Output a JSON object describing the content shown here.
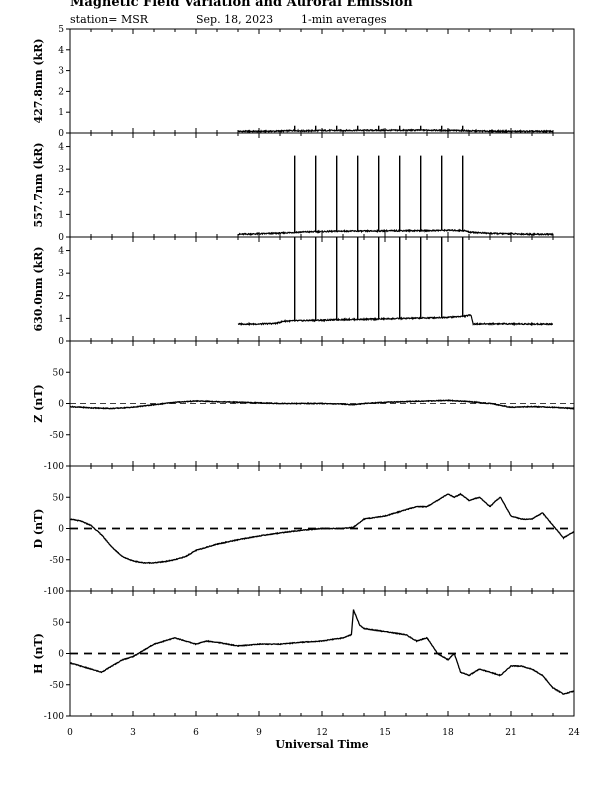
{
  "header": {
    "title": "Magnetic Field Variation and Auroral Emission",
    "station": "station= MSR",
    "date": "Sep. 18, 2023",
    "averaging": "1-min averages"
  },
  "chart_data": [
    {
      "type": "line",
      "panel": "427.8nm",
      "ylabel": "427.8nm (kR)",
      "ylim": [
        0,
        5
      ],
      "yticks": [
        0,
        1,
        2,
        3,
        4,
        5
      ],
      "xlim": [
        0,
        24
      ],
      "grid": false,
      "series": [
        {
          "x": [
            8.0,
            9,
            10,
            10.7,
            11,
            12,
            13,
            14,
            15,
            16,
            17,
            18,
            18.8,
            19,
            20,
            21,
            22,
            23.0
          ],
          "values": [
            0.08,
            0.08,
            0.09,
            0.12,
            0.1,
            0.12,
            0.12,
            0.13,
            0.13,
            0.13,
            0.14,
            0.12,
            0.12,
            0.1,
            0.09,
            0.08,
            0.08,
            0.08
          ]
        }
      ],
      "spikes": {
        "x": [
          10.7,
          11.7,
          12.7,
          13.7,
          14.7,
          15.7,
          16.7,
          17.7,
          18.7
        ],
        "value": 0.35
      }
    },
    {
      "type": "line",
      "panel": "557.7nm",
      "ylabel": "557.7nm (kR)",
      "ylim": [
        0,
        4.6
      ],
      "yticks": [
        0,
        1,
        2,
        3,
        4
      ],
      "xlim": [
        0,
        24
      ],
      "grid": false,
      "series": [
        {
          "x": [
            8.0,
            9,
            10,
            11,
            12,
            13,
            14,
            15,
            16,
            17,
            18,
            18.8,
            19,
            20,
            21,
            22,
            23.0
          ],
          "values": [
            0.12,
            0.14,
            0.17,
            0.22,
            0.24,
            0.26,
            0.26,
            0.27,
            0.28,
            0.28,
            0.3,
            0.28,
            0.22,
            0.16,
            0.14,
            0.12,
            0.12
          ]
        }
      ],
      "spikes": {
        "x": [
          10.7,
          11.7,
          12.7,
          13.7,
          14.7,
          15.7,
          16.7,
          17.7,
          18.7
        ],
        "value": 3.6
      }
    },
    {
      "type": "line",
      "panel": "630.0nm",
      "ylabel": "630.0nm (kR)",
      "ylim": [
        0,
        4.6
      ],
      "yticks": [
        0,
        1,
        2,
        3,
        4
      ],
      "xlim": [
        0,
        24
      ],
      "grid": false,
      "series": [
        {
          "x": [
            8.0,
            9,
            9.8,
            10.2,
            11,
            12,
            13,
            14,
            15,
            16,
            17,
            18,
            18.8,
            19.1,
            19.2,
            20,
            21,
            22,
            23.0
          ],
          "values": [
            0.75,
            0.75,
            0.78,
            0.88,
            0.9,
            0.92,
            0.95,
            0.96,
            0.98,
            1.0,
            1.02,
            1.05,
            1.1,
            1.15,
            0.75,
            0.76,
            0.76,
            0.75,
            0.75
          ]
        }
      ],
      "spikes": {
        "x": [
          10.7,
          11.7,
          12.7,
          13.7,
          14.7,
          15.7,
          16.7,
          17.7,
          18.7
        ],
        "value": 4.6
      }
    },
    {
      "type": "line",
      "panel": "Z",
      "ylabel": "Z (nT)",
      "ylim": [
        -100,
        100
      ],
      "yticks": [
        -100,
        -50,
        0,
        50
      ],
      "xlim": [
        0,
        24
      ],
      "grid": false,
      "zero_line": true,
      "series": [
        {
          "x": [
            0,
            1,
            2,
            3,
            4,
            5,
            6,
            7,
            8,
            9,
            10,
            11,
            12,
            13,
            13.5,
            14,
            15,
            16,
            17,
            18,
            19,
            20,
            21,
            22,
            23,
            24
          ],
          "values": [
            -5,
            -7,
            -8,
            -6,
            -2,
            2,
            4,
            3,
            2,
            1,
            0,
            0,
            0,
            -1,
            -2,
            0,
            2,
            3,
            4,
            5,
            3,
            0,
            -6,
            -5,
            -6,
            -8
          ]
        }
      ]
    },
    {
      "type": "line",
      "panel": "D",
      "ylabel": "D (nT)",
      "ylim": [
        -100,
        100
      ],
      "yticks": [
        -100,
        -50,
        0,
        50
      ],
      "xlim": [
        0,
        24
      ],
      "grid": false,
      "zero_line": true,
      "series": [
        {
          "x": [
            0,
            0.5,
            1,
            1.5,
            2,
            2.5,
            3,
            3.5,
            4,
            4.5,
            5,
            5.5,
            6,
            6.5,
            7,
            8,
            9,
            10,
            11,
            12,
            13,
            13.5,
            14,
            15,
            16,
            16.5,
            17,
            17.5,
            18,
            18.3,
            18.6,
            19,
            19.5,
            20,
            20.3,
            20.5,
            21,
            21.5,
            22,
            22.5,
            23,
            23.5,
            24
          ],
          "values": [
            15,
            12,
            5,
            -10,
            -30,
            -45,
            -52,
            -55,
            -55,
            -53,
            -50,
            -45,
            -35,
            -30,
            -25,
            -18,
            -12,
            -7,
            -3,
            0,
            0,
            2,
            15,
            20,
            30,
            35,
            35,
            45,
            55,
            50,
            55,
            45,
            50,
            35,
            45,
            50,
            20,
            15,
            15,
            25,
            5,
            -15,
            -5
          ]
        }
      ]
    },
    {
      "type": "line",
      "panel": "H",
      "ylabel": "H (nT)",
      "ylim": [
        -100,
        100
      ],
      "yticks": [
        -100,
        -50,
        0,
        50
      ],
      "xlim": [
        0,
        24
      ],
      "xticks": [
        0,
        3,
        6,
        9,
        12,
        15,
        18,
        21,
        24
      ],
      "xlabel": "Universal Time",
      "grid": false,
      "zero_line": true,
      "series": [
        {
          "x": [
            0,
            0.5,
            1,
            1.5,
            2,
            2.5,
            3,
            3.5,
            4,
            4.5,
            5,
            5.5,
            6,
            6.5,
            7,
            8,
            9,
            10,
            11,
            12,
            13,
            13.4,
            13.5,
            13.8,
            14,
            15,
            16,
            16.5,
            17,
            17.5,
            18,
            18.3,
            18.6,
            19,
            19.5,
            20,
            20.5,
            21,
            21.5,
            22,
            22.5,
            23,
            23.5,
            24
          ],
          "values": [
            -15,
            -20,
            -25,
            -30,
            -20,
            -10,
            -5,
            5,
            15,
            20,
            25,
            20,
            15,
            20,
            18,
            12,
            15,
            15,
            18,
            20,
            25,
            30,
            70,
            45,
            40,
            35,
            30,
            20,
            25,
            0,
            -10,
            0,
            -30,
            -35,
            -25,
            -30,
            -35,
            -20,
            -20,
            -25,
            -35,
            -55,
            -65,
            -60
          ]
        }
      ]
    }
  ]
}
